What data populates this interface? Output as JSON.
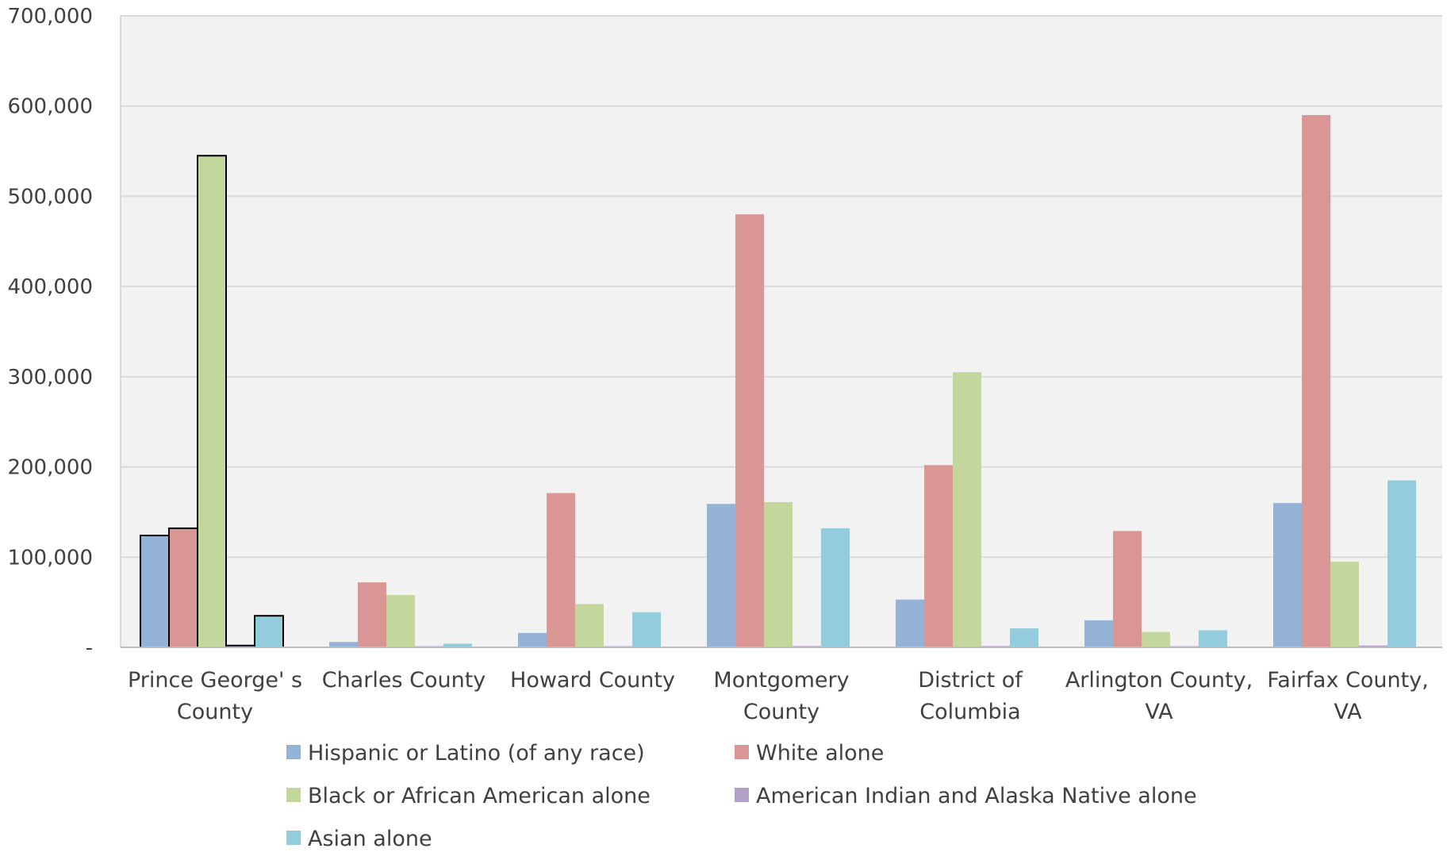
{
  "chart_data": {
    "type": "bar",
    "title": "",
    "xlabel": "",
    "ylabel": "",
    "ylim": [
      0,
      700000
    ],
    "y_ticks": [
      {
        "value": 0,
        "label": "-"
      },
      {
        "value": 100000,
        "label": "100,000"
      },
      {
        "value": 200000,
        "label": "200,000"
      },
      {
        "value": 300000,
        "label": "300,000"
      },
      {
        "value": 400000,
        "label": "400,000"
      },
      {
        "value": 500000,
        "label": "500,000"
      },
      {
        "value": 600000,
        "label": "600,000"
      },
      {
        "value": 700000,
        "label": "700,000"
      }
    ],
    "grid": true,
    "legend_position": "bottom",
    "categories": [
      [
        "Prince George' s",
        "County"
      ],
      [
        "Charles County"
      ],
      [
        "Howard County"
      ],
      [
        "Montgomery",
        "County"
      ],
      [
        "District of",
        "Columbia"
      ],
      [
        "Arlington County,",
        "VA"
      ],
      [
        "Fairfax County,",
        "VA"
      ]
    ],
    "highlighted_category": 0,
    "series": [
      {
        "name": "Hispanic or Latino (of any race)",
        "color": "#95b3d7",
        "values": [
          124000,
          6000,
          16000,
          159000,
          53000,
          30000,
          160000
        ]
      },
      {
        "name": "White alone",
        "color": "#d99694",
        "values": [
          132000,
          72000,
          171000,
          480000,
          202000,
          129000,
          590000
        ]
      },
      {
        "name": "Black or African American alone",
        "color": "#c3d69b",
        "values": [
          545000,
          58000,
          48000,
          161000,
          305000,
          17000,
          95000
        ]
      },
      {
        "name": "American Indian and Alaska Native alone",
        "color": "#b3a2c7",
        "values": [
          2000,
          800,
          400,
          1500,
          1500,
          600,
          2000
        ]
      },
      {
        "name": "Asian alone",
        "color": "#93cddd",
        "values": [
          35000,
          4000,
          39000,
          132000,
          21000,
          19000,
          185000
        ]
      }
    ]
  },
  "colors": {
    "plot_background": "#f2f2f2",
    "gridline": "#d9d9d9",
    "axis": "#bfbfbf",
    "highlight_outline": "#000000"
  }
}
